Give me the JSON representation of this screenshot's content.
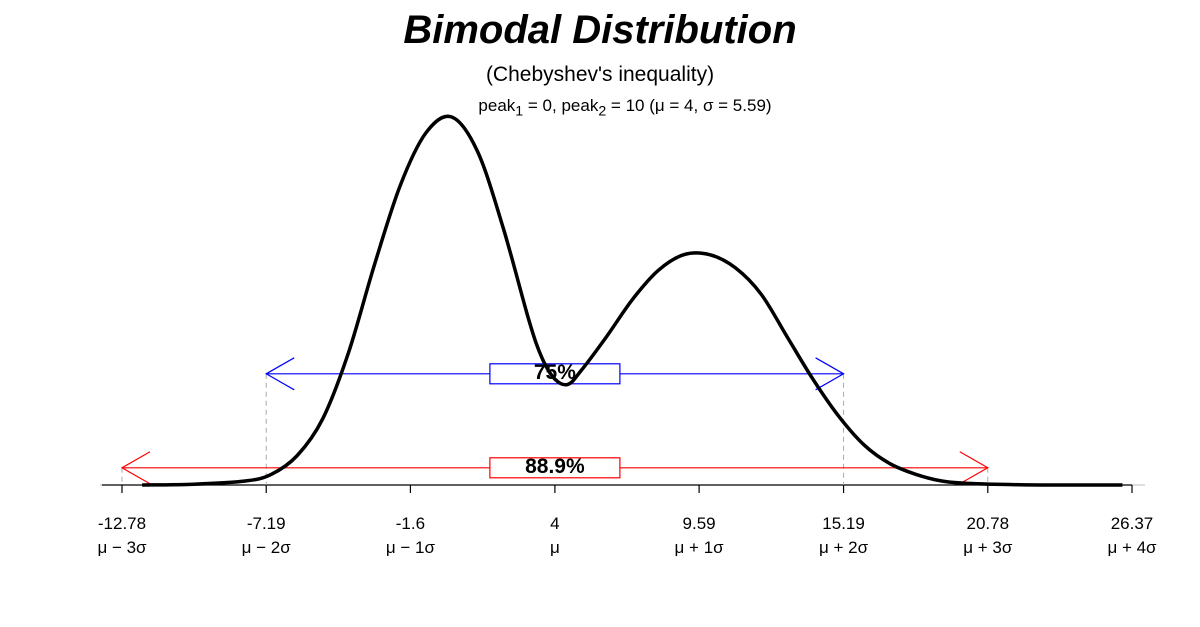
{
  "chart_data": {
    "type": "line",
    "title": "Bimodal Distribution",
    "subtitle": "(Chebyshev's inequality)",
    "annotation": {
      "peak1_label": "peak",
      "peak1_sub": "1",
      "peak1_text": " = 0, ",
      "peak2_label": "peak",
      "peak2_sub": "2",
      "peak2_text": " = 10 (μ = 4, σ = 5.59)"
    },
    "mean": 4,
    "sd": 5.59,
    "peaks": [
      0,
      10
    ],
    "xlim": [
      -12.78,
      26.37
    ],
    "ticks": [
      {
        "value": "-12.78",
        "symbol": "μ − 3σ"
      },
      {
        "value": "-7.19",
        "symbol": "μ − 2σ"
      },
      {
        "value": "-1.6",
        "symbol": "μ − 1σ"
      },
      {
        "value": "4",
        "symbol": "μ"
      },
      {
        "value": "9.59",
        "symbol": "μ + 1σ"
      },
      {
        "value": "15.19",
        "symbol": "μ + 2σ"
      },
      {
        "value": "20.78",
        "symbol": "μ + 3σ"
      },
      {
        "value": "26.37",
        "symbol": "μ + 4σ"
      }
    ],
    "series": [
      {
        "x": [
          -12,
          -10,
          -8,
          -7,
          -6,
          -5,
          -4,
          -3,
          -2,
          -1,
          0,
          1,
          2,
          3,
          3.5,
          4,
          4.5,
          5,
          6,
          7,
          8,
          9,
          10,
          11,
          12,
          13,
          14,
          15,
          16,
          17,
          18,
          19,
          20,
          22,
          24,
          26
        ],
        "y": [
          0.0,
          0.0003,
          0.0015,
          0.004,
          0.011,
          0.025,
          0.05,
          0.083,
          0.113,
          0.133,
          0.139,
          0.126,
          0.097,
          0.062,
          0.048,
          0.04,
          0.038,
          0.043,
          0.056,
          0.07,
          0.081,
          0.087,
          0.087,
          0.082,
          0.072,
          0.056,
          0.04,
          0.026,
          0.015,
          0.008,
          0.004,
          0.0015,
          0.0006,
          0.0001,
          0.0,
          0.0
        ]
      }
    ],
    "intervals": [
      {
        "label": "75%",
        "from": -7.19,
        "to": 15.19,
        "color": "#0000ff",
        "level": 0.042
      },
      {
        "label": "88.9%",
        "from": -12.78,
        "to": 20.78,
        "color": "#ff0000",
        "level": 0.0065
      }
    ]
  }
}
